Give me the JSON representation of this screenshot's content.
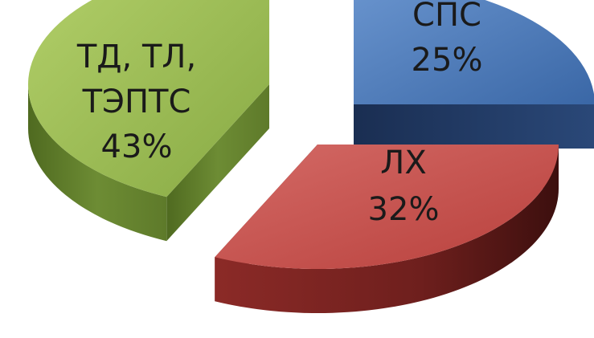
{
  "chart_data": {
    "type": "pie",
    "style": "3d-exploded",
    "categories": [
      "СПС",
      "ЛХ",
      "ТД, ТЛ, ТЭПТС"
    ],
    "values": [
      25,
      32,
      43
    ],
    "unit": "%",
    "legend": "none",
    "data_labels": [
      {
        "lines": [
          "СПС",
          "25%"
        ]
      },
      {
        "lines": [
          "ЛХ",
          "32%"
        ]
      },
      {
        "lines": [
          "ТД, ТЛ,",
          "ТЭПТС",
          "43%"
        ]
      }
    ],
    "colors": {
      "slice_0": {
        "top": "#4F81BD",
        "side": "#1F3864"
      },
      "slice_1": {
        "top": "#C0504D",
        "side": "#6E1F1D"
      },
      "slice_2": {
        "top": "#9BBB59",
        "side": "#5E7A2A"
      }
    }
  }
}
